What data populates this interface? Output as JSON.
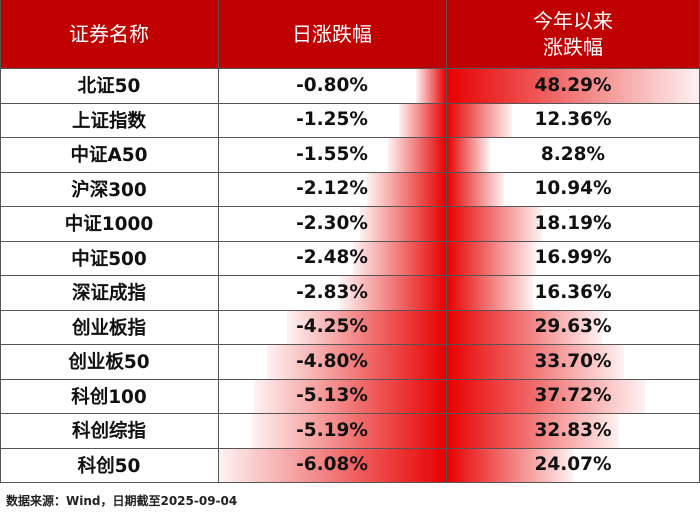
{
  "colors": {
    "header_bg": "#c00000",
    "bar": "#e60000"
  },
  "header": {
    "name": "证券名称",
    "daily": "日涨跌幅",
    "ytd_line1": "今年以来",
    "ytd_line2": "涨跌幅"
  },
  "chart_data": {
    "type": "table",
    "columns": [
      "证券名称",
      "日涨跌幅",
      "今年以来涨跌幅"
    ],
    "rows": [
      {
        "name": "北证50",
        "daily": "-0.80%",
        "daily_value": -0.8,
        "ytd": "48.29%",
        "ytd_value": 48.29
      },
      {
        "name": "上证指数",
        "daily": "-1.25%",
        "daily_value": -1.25,
        "ytd": "12.36%",
        "ytd_value": 12.36
      },
      {
        "name": "中证A50",
        "daily": "-1.55%",
        "daily_value": -1.55,
        "ytd": "8.28%",
        "ytd_value": 8.28
      },
      {
        "name": "沪深300",
        "daily": "-2.12%",
        "daily_value": -2.12,
        "ytd": "10.94%",
        "ytd_value": 10.94
      },
      {
        "name": "中证1000",
        "daily": "-2.30%",
        "daily_value": -2.3,
        "ytd": "18.19%",
        "ytd_value": 18.19
      },
      {
        "name": "中证500",
        "daily": "-2.48%",
        "daily_value": -2.48,
        "ytd": "16.99%",
        "ytd_value": 16.99
      },
      {
        "name": "深证成指",
        "daily": "-2.83%",
        "daily_value": -2.83,
        "ytd": "16.36%",
        "ytd_value": 16.36
      },
      {
        "name": "创业板指",
        "daily": "-4.25%",
        "daily_value": -4.25,
        "ytd": "29.63%",
        "ytd_value": 29.63
      },
      {
        "name": "创业板50",
        "daily": "-4.80%",
        "daily_value": -4.8,
        "ytd": "33.70%",
        "ytd_value": 33.7
      },
      {
        "name": "科创100",
        "daily": "-5.13%",
        "daily_value": -5.13,
        "ytd": "37.72%",
        "ytd_value": 37.72
      },
      {
        "name": "科创综指",
        "daily": "-5.19%",
        "daily_value": -5.19,
        "ytd": "32.83%",
        "ytd_value": 32.83
      },
      {
        "name": "科创50",
        "daily": "-6.08%",
        "daily_value": -6.08,
        "ytd": "24.07%",
        "ytd_value": 24.07
      }
    ]
  },
  "footer": "数据来源：Wind，日期截至2025-09-04"
}
